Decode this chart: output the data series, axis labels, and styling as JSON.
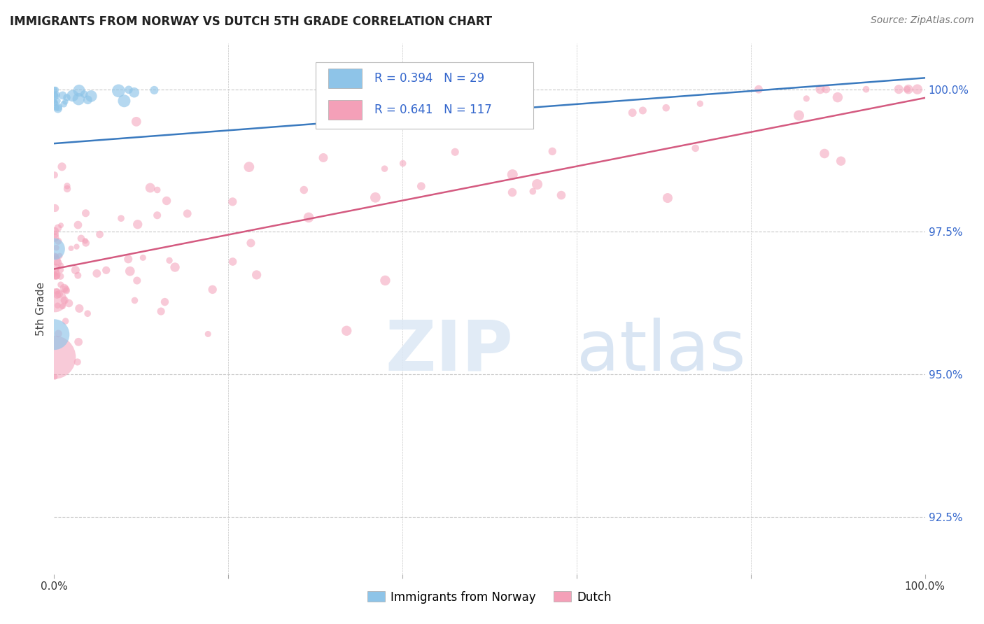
{
  "title": "IMMIGRANTS FROM NORWAY VS DUTCH 5TH GRADE CORRELATION CHART",
  "source": "Source: ZipAtlas.com",
  "ylabel": "5th Grade",
  "xlim": [
    0.0,
    1.0
  ],
  "ylim": [
    0.915,
    1.008
  ],
  "yticks": [
    0.925,
    0.95,
    0.975,
    1.0
  ],
  "ytick_labels": [
    "92.5%",
    "95.0%",
    "97.5%",
    "100.0%"
  ],
  "norway_R": "0.394",
  "norway_N": "29",
  "dutch_R": "0.641",
  "dutch_N": "117",
  "norway_color": "#8ec4e8",
  "dutch_color": "#f4a0b8",
  "norway_line_color": "#3a7abf",
  "dutch_line_color": "#d45a80",
  "grid_color": "#c8c8c8",
  "background_color": "#ffffff",
  "norway_trend_x0": 0.0,
  "norway_trend_x1": 1.0,
  "norway_trend_y0": 0.9905,
  "norway_trend_y1": 1.002,
  "dutch_trend_x0": 0.0,
  "dutch_trend_x1": 1.0,
  "dutch_trend_y0": 0.9685,
  "dutch_trend_y1": 0.9985
}
